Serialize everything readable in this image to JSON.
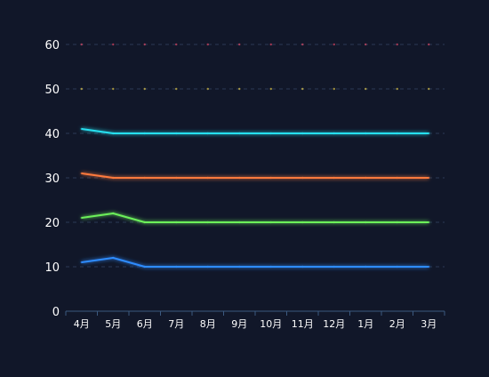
{
  "chart_data": {
    "type": "line",
    "categories": [
      "4月",
      "5月",
      "6月",
      "7月",
      "8月",
      "9月",
      "10月",
      "11月",
      "12月",
      "1月",
      "2月",
      "3月"
    ],
    "ylim": [
      0,
      60
    ],
    "yticks": [
      0,
      10,
      20,
      30,
      40,
      50,
      60
    ],
    "grid": true,
    "legend": "none",
    "series": [
      {
        "color": "#ff4f6e",
        "values": [
          60,
          60,
          60,
          60,
          60,
          60,
          60,
          60,
          60,
          60,
          60,
          60
        ]
      },
      {
        "color": "#ffe14d",
        "values": [
          50,
          50,
          50,
          50,
          50,
          50,
          50,
          50,
          50,
          50,
          50,
          50
        ]
      },
      {
        "color": "#27e0f0",
        "values": [
          41,
          40,
          40,
          40,
          40,
          40,
          40,
          40,
          40,
          40,
          40,
          40
        ]
      },
      {
        "color": "#ff7a3d",
        "values": [
          31,
          30,
          30,
          30,
          30,
          30,
          30,
          30,
          30,
          30,
          30,
          30
        ]
      },
      {
        "color": "#6cf05a",
        "values": [
          21,
          22,
          20,
          20,
          20,
          20,
          20,
          20,
          20,
          20,
          20,
          20
        ]
      },
      {
        "color": "#2f8cff",
        "values": [
          11,
          12,
          10,
          10,
          10,
          10,
          10,
          10,
          10,
          10,
          10,
          10
        ]
      }
    ]
  }
}
